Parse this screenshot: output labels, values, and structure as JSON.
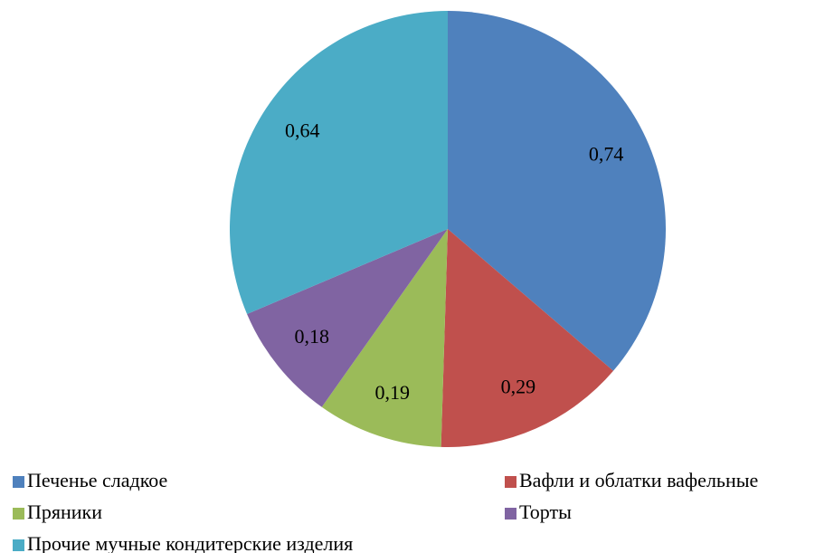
{
  "chart_data": {
    "type": "pie",
    "categories": [
      "Печенье сладкое",
      "Вафли и облатки вафельные",
      "Пряники",
      "Торты",
      "Прочие мучные кондитерские изделия"
    ],
    "values": [
      0.74,
      0.29,
      0.19,
      0.18,
      0.64
    ],
    "value_labels": [
      "0,74",
      "0,29",
      "0,19",
      "0,18",
      "0,64"
    ],
    "colors": [
      "#4f81bd",
      "#c0504d",
      "#9bbb59",
      "#8064a2",
      "#4bacc6"
    ],
    "legend": "bottom"
  }
}
